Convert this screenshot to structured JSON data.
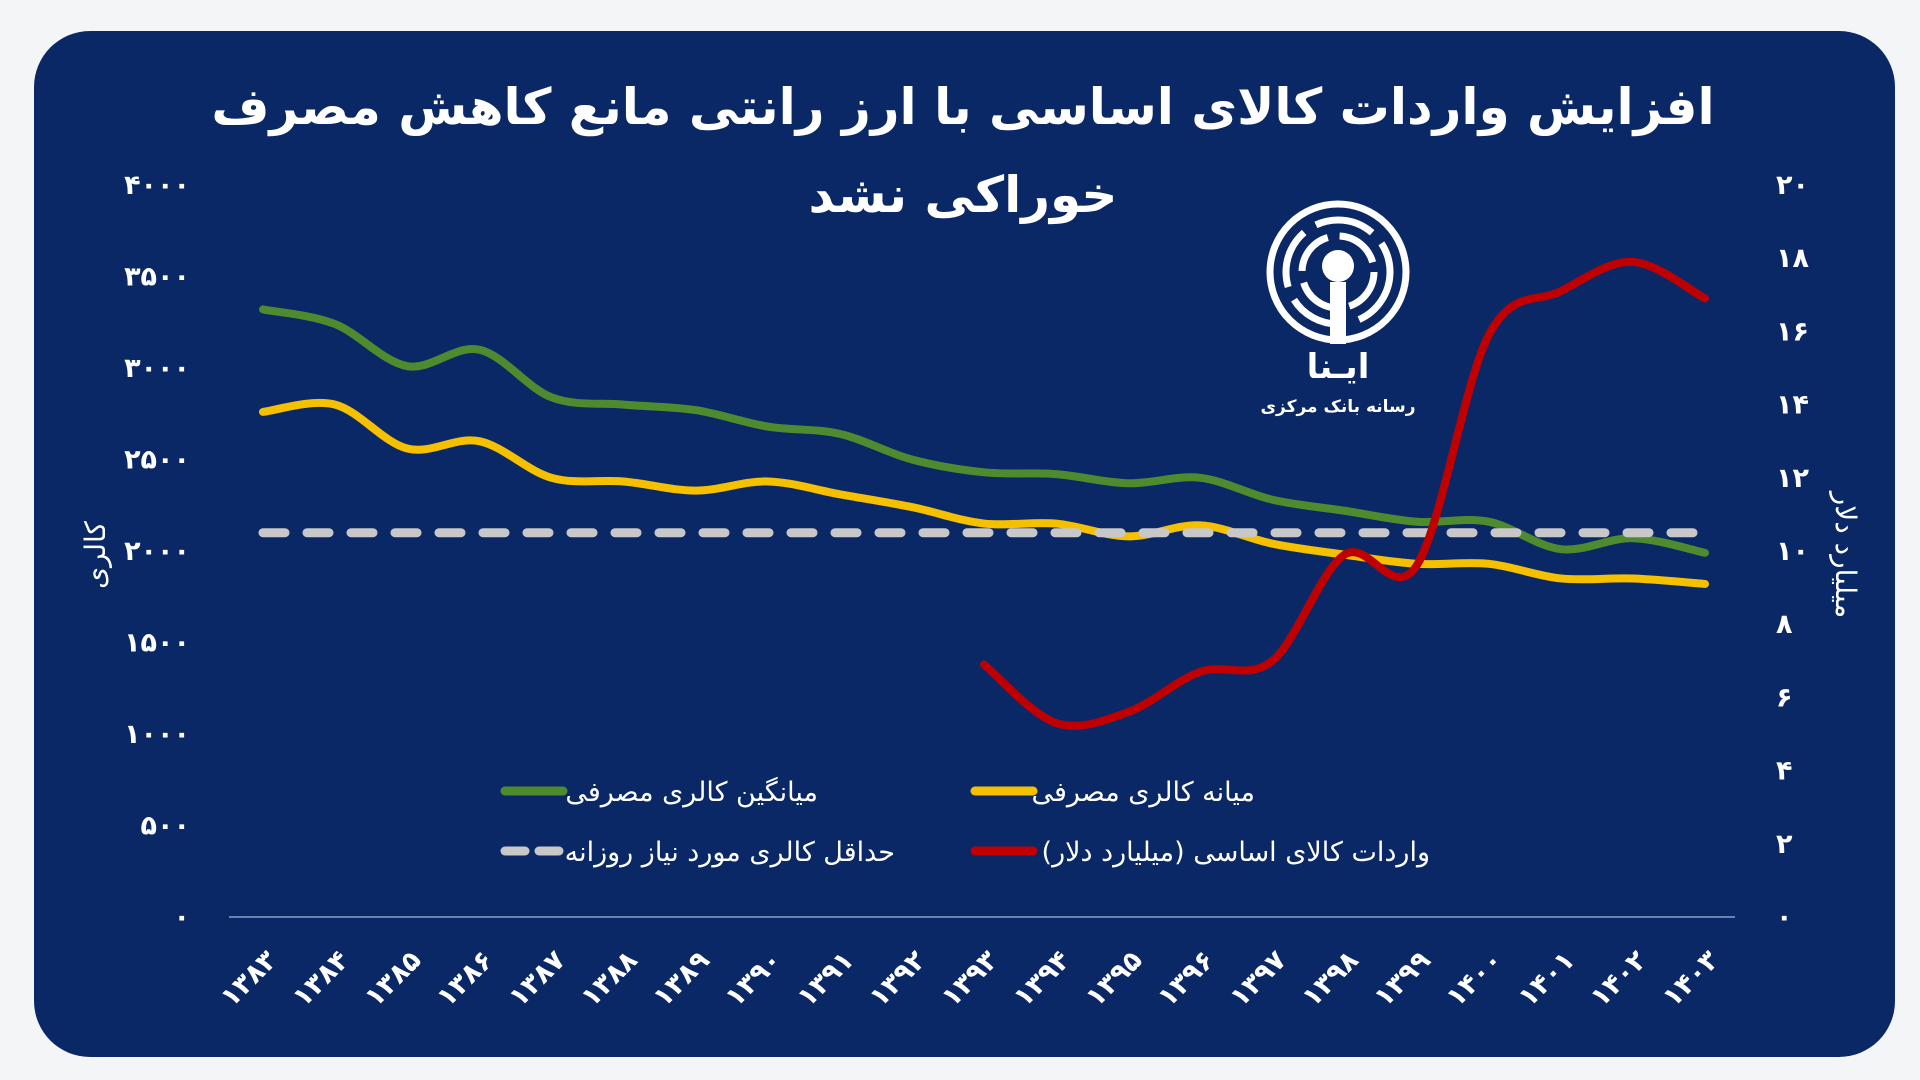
{
  "chart_data": {
    "type": "line",
    "title": "افزایش واردات کالای اساسی با ارز رانتی مانع کاهش مصرف خوراکی نشد",
    "title_lines": [
      "افزایش واردات کالای اساسی با ارز رانتی مانع کاهش مصرف",
      "خوراکی نشد"
    ],
    "ylabel_left": "کالری",
    "ylabel_right": "میلیارد دلار",
    "ylim_left": [
      0,
      4000
    ],
    "ylim_right": [
      0,
      20
    ],
    "yticks_left": [
      "۰",
      "۵۰۰",
      "۱۰۰۰",
      "۱۵۰۰",
      "۲۰۰۰",
      "۲۵۰۰",
      "۳۰۰۰",
      "۳۵۰۰",
      "۴۰۰۰"
    ],
    "yticks_right": [
      "۰",
      "۲",
      "۴",
      "۶",
      "۸",
      "۱۰",
      "۱۲",
      "۱۴",
      "۱۶",
      "۱۸",
      "۲۰"
    ],
    "categories": [
      "۱۳۸۳",
      "۱۳۸۴",
      "۱۳۸۵",
      "۱۳۸۶",
      "۱۳۸۷",
      "۱۳۸۸",
      "۱۳۸۹",
      "۱۳۹۰",
      "۱۳۹۱",
      "۱۳۹۲",
      "۱۳۹۳",
      "۱۳۹۴",
      "۱۳۹۵",
      "۱۳۹۶",
      "۱۳۹۷",
      "۱۳۹۸",
      "۱۳۹۹",
      "۱۴۰۰",
      "۱۴۰۱",
      "۱۴۰۲",
      "۱۴۰۳"
    ],
    "grid": false,
    "legend_placement": "bottom-center",
    "series": [
      {
        "name": "میانگین کالری مصرفی",
        "axis": "left",
        "color": "#4e8a2e",
        "values": [
          3320,
          3240,
          3010,
          3100,
          2840,
          2800,
          2770,
          2680,
          2640,
          2500,
          2430,
          2420,
          2370,
          2400,
          2280,
          2220,
          2160,
          2160,
          2010,
          2070,
          1990
        ]
      },
      {
        "name": "میانه کالری مصرفی",
        "axis": "left",
        "color": "#f5c000",
        "values": [
          2760,
          2800,
          2560,
          2600,
          2400,
          2380,
          2330,
          2380,
          2310,
          2240,
          2150,
          2150,
          2080,
          2140,
          2040,
          1980,
          1930,
          1930,
          1850,
          1850,
          1820
        ]
      },
      {
        "name": "حداقل کالری مورد نیاز روزانه",
        "axis": "left",
        "color": "#c8c8c8",
        "dashed": true,
        "values": [
          2100,
          2100,
          2100,
          2100,
          2100,
          2100,
          2100,
          2100,
          2100,
          2100,
          2100,
          2100,
          2100,
          2100,
          2100,
          2100,
          2100,
          2100,
          2100,
          2100,
          2100
        ]
      },
      {
        "name": "واردات کالای اساسی (میلیارد دلار)",
        "axis": "right",
        "color": "#c00000",
        "values": [
          null,
          null,
          null,
          null,
          null,
          null,
          null,
          null,
          null,
          null,
          6.9,
          5.3,
          5.6,
          6.7,
          7.0,
          9.9,
          9.6,
          15.9,
          17.1,
          17.9,
          16.9
        ]
      }
    ]
  },
  "logo": {
    "name": "ایـنا",
    "tagline": "رسانه بانک مرکزی"
  },
  "colors": {
    "background": "#0b2866",
    "text": "#ffffff"
  }
}
